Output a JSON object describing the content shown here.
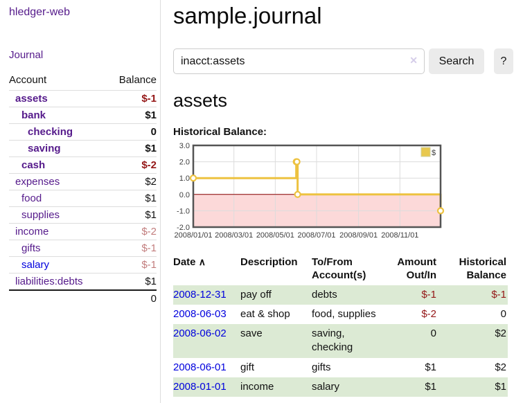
{
  "sidebar": {
    "brand": "hledger-web",
    "nav": [
      {
        "label": "Journal"
      }
    ],
    "accounts_table": {
      "headers": {
        "account": "Account",
        "balance": "Balance"
      },
      "rows": [
        {
          "label": "assets",
          "indent": 1,
          "bold": true,
          "link_color": "purple",
          "balance": "$-1",
          "balance_class": "neg-strong"
        },
        {
          "label": "bank",
          "indent": 2,
          "bold": true,
          "link_color": "purple",
          "balance": "$1",
          "balance_class": "pos"
        },
        {
          "label": "checking",
          "indent": 3,
          "bold": true,
          "link_color": "purple",
          "balance": "0",
          "balance_class": "pos"
        },
        {
          "label": "saving",
          "indent": 3,
          "bold": true,
          "link_color": "purple",
          "balance": "$1",
          "balance_class": "pos"
        },
        {
          "label": "cash",
          "indent": 2,
          "bold": true,
          "link_color": "purple",
          "balance": "$-2",
          "balance_class": "neg-strong"
        },
        {
          "label": "expenses",
          "indent": 1,
          "bold": false,
          "link_color": "purple",
          "balance": "$2",
          "balance_class": "pos"
        },
        {
          "label": "food",
          "indent": 2,
          "bold": false,
          "link_color": "purple",
          "balance": "$1",
          "balance_class": "pos"
        },
        {
          "label": "supplies",
          "indent": 2,
          "bold": false,
          "link_color": "purple",
          "balance": "$1",
          "balance_class": "pos"
        },
        {
          "label": "income",
          "indent": 1,
          "bold": false,
          "link_color": "purple",
          "balance": "$-2",
          "balance_class": "neg-light"
        },
        {
          "label": "gifts",
          "indent": 2,
          "bold": false,
          "link_color": "purple",
          "balance": "$-1",
          "balance_class": "neg-light"
        },
        {
          "label": "salary",
          "indent": 2,
          "bold": false,
          "link_color": "blue",
          "balance": "$-1",
          "balance_class": "neg-light"
        },
        {
          "label": "liabilities:debts",
          "indent": 1,
          "bold": false,
          "link_color": "purple",
          "balance": "$1",
          "balance_class": "pos"
        }
      ],
      "total": "0"
    }
  },
  "header": {
    "title": "sample.journal"
  },
  "search": {
    "query": "inacct:assets",
    "clear_icon": "✕",
    "search_label": "Search",
    "help_label": "?"
  },
  "account_page": {
    "heading": "assets",
    "chart_label": "Historical Balance:"
  },
  "chart_data": {
    "type": "line",
    "title": "Historical Balance",
    "step": true,
    "x_range": [
      "2008-01-01",
      "2008-12-31"
    ],
    "y_range": [
      -2.0,
      3.0
    ],
    "y_ticks": [
      3.0,
      2.0,
      1.0,
      0.0,
      -1.0,
      -2.0
    ],
    "x_tick_labels": [
      "2008/01/01",
      "2008/03/01",
      "2008/05/01",
      "2008/07/01",
      "2008/09/01",
      "2008/11/01"
    ],
    "series": [
      {
        "name": "$",
        "color": "#edc240",
        "points": [
          [
            "2008-01-01",
            1
          ],
          [
            "2008-06-01",
            2
          ],
          [
            "2008-06-02",
            2
          ],
          [
            "2008-06-03",
            0
          ],
          [
            "2008-12-31",
            -1
          ]
        ]
      }
    ],
    "legend": {
      "label": "$",
      "color": "#e8c84e",
      "position": "top-right"
    },
    "grid": true,
    "grid_color": "#dcdcdc",
    "border_color": "#545454",
    "negative_region_color": "#fcd9d9",
    "zero_line_color": "#8b0000"
  },
  "register_table": {
    "headers": {
      "date": "Date",
      "sort_icon": "∧",
      "description": "Description",
      "accounts": "To/From Account(s)",
      "amount": "Amount Out/In",
      "balance": "Historical Balance"
    },
    "rows": [
      {
        "date": "2008-12-31",
        "description": "pay off",
        "accounts": "debts",
        "amount": "$-1",
        "amount_negative": true,
        "balance": "$-1",
        "balance_negative": true
      },
      {
        "date": "2008-06-03",
        "description": "eat & shop",
        "accounts": "food, supplies",
        "amount": "$-2",
        "amount_negative": true,
        "balance": "0",
        "balance_negative": false
      },
      {
        "date": "2008-06-02",
        "description": "save",
        "accounts": "saving, checking",
        "amount": "0",
        "amount_negative": false,
        "balance": "$2",
        "balance_negative": false
      },
      {
        "date": "2008-06-01",
        "description": "gift",
        "accounts": "gifts",
        "amount": "$1",
        "amount_negative": false,
        "balance": "$2",
        "balance_negative": false
      },
      {
        "date": "2008-01-01",
        "description": "income",
        "accounts": "salary",
        "amount": "$1",
        "amount_negative": false,
        "balance": "$1",
        "balance_negative": false
      }
    ]
  },
  "colors": {
    "link_purple": "#551a8b",
    "link_blue": "#0000dd",
    "negative_strong": "#941616",
    "negative_light": "#c27d7d",
    "row_stripe_green": "#dcead4",
    "chart_line_yellow": "#edc240"
  }
}
